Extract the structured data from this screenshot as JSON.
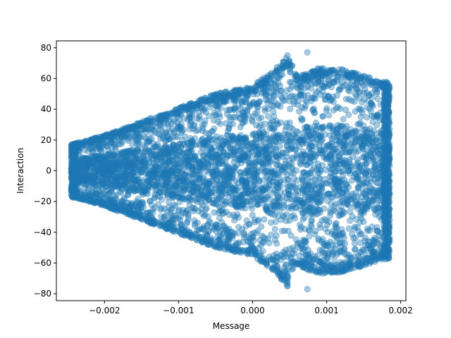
{
  "chart_data": {
    "type": "scatter",
    "title": "",
    "xlabel": "Message",
    "ylabel": "Interaction",
    "xlim": [
      -0.00265,
      0.00207
    ],
    "ylim": [
      -84.5,
      84.5
    ],
    "xticks": [
      -0.002,
      -0.001,
      0.0,
      0.001,
      0.002
    ],
    "xtick_labels": [
      "−0.002",
      "−0.001",
      "0.000",
      "0.001",
      "0.002"
    ],
    "yticks": [
      -80,
      -60,
      -40,
      -20,
      0,
      20,
      40,
      60,
      80
    ],
    "ytick_labels": [
      "−80",
      "−60",
      "−40",
      "−20",
      "0",
      "20",
      "40",
      "60",
      "80"
    ],
    "grid": false,
    "legend": "none",
    "marker_color": "#1f77b4",
    "marker_alpha": 0.4,
    "series": [
      {
        "x_range": [
          -0.00245,
          0.00185
        ],
        "y_range": [
          -77,
          77
        ],
        "outliers": [
          {
            "x": 0.00074,
            "y": 77
          },
          {
            "x": 0.00074,
            "y": -77
          },
          {
            "x": 0.00047,
            "y": 75
          },
          {
            "x": 0.00047,
            "y": -75
          }
        ],
        "envelope": [
          {
            "x": -0.00245,
            "y": 17
          },
          {
            "x": -0.002,
            "y": 23
          },
          {
            "x": -0.0015,
            "y": 32
          },
          {
            "x": -0.001,
            "y": 41
          },
          {
            "x": -0.0005,
            "y": 50
          },
          {
            "x": 0.0,
            "y": 55
          },
          {
            "x": 0.0003,
            "y": 66
          },
          {
            "x": 0.00047,
            "y": 75
          },
          {
            "x": 0.0006,
            "y": 62
          },
          {
            "x": 0.0009,
            "y": 67
          },
          {
            "x": 0.0012,
            "y": 66
          },
          {
            "x": 0.0015,
            "y": 62
          },
          {
            "x": 0.00185,
            "y": 57
          }
        ]
      }
    ]
  }
}
